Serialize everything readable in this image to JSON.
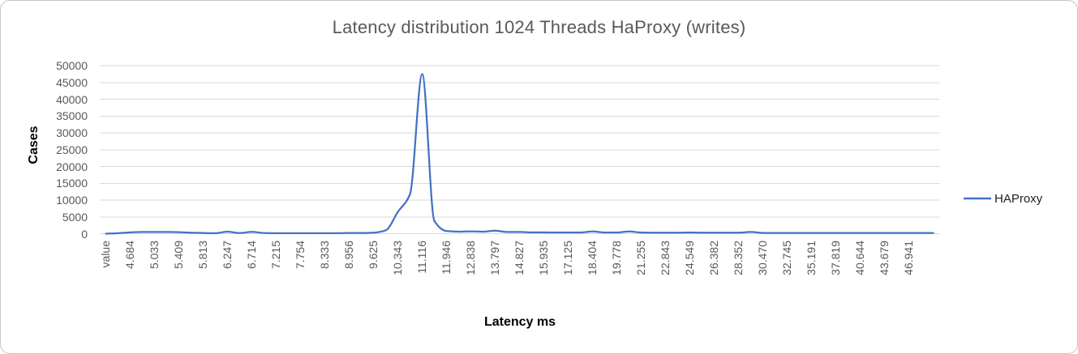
{
  "styles": {
    "accent": "#4472C4",
    "grid_color": "#D9D9D9",
    "muted_text": "#595959",
    "frame_border": "#C6C6C6"
  },
  "chart_data": {
    "type": "line",
    "title": "Latency distribution 1024 Threads HaProxy (writes)",
    "xlabel": "Latency ms",
    "ylabel": "Cases",
    "ylim": [
      0,
      50000
    ],
    "grid": true,
    "smooth_line": true,
    "y_ticks": [
      "0",
      "5000",
      "10000",
      "15000",
      "20000",
      "25000",
      "30000",
      "35000",
      "40000",
      "45000",
      "50000"
    ],
    "categories": [
      "value",
      "4.684",
      "5.033",
      "5.409",
      "5.813",
      "6.247",
      "6.714",
      "7.215",
      "7.754",
      "8.333",
      "8.956",
      "9.625",
      "10.343",
      "11.116",
      "11.946",
      "12.838",
      "13.797",
      "14.827",
      "15.935",
      "17.125",
      "18.404",
      "19.778",
      "21.255",
      "22.843",
      "24.549",
      "26.382",
      "28.352",
      "30.470",
      "32.745",
      "35.191",
      "37.819",
      "40.644",
      "43.679",
      "46.941"
    ],
    "category_label_every_n_points": 2,
    "legend": {
      "position": "right",
      "entries": [
        {
          "label": "HAProxy",
          "color": "#4472C4"
        }
      ]
    },
    "series": [
      {
        "name": "HAProxy",
        "color": "#4472C4",
        "values": [
          0,
          150,
          400,
          500,
          500,
          500,
          450,
          300,
          200,
          150,
          600,
          200,
          550,
          200,
          150,
          150,
          150,
          150,
          150,
          150,
          200,
          200,
          300,
          1000,
          6500,
          11800,
          47500,
          3800,
          800,
          600,
          700,
          600,
          900,
          500,
          500,
          400,
          400,
          350,
          350,
          350,
          650,
          350,
          350,
          650,
          350,
          300,
          300,
          300,
          350,
          300,
          300,
          300,
          300,
          500,
          250,
          200,
          200,
          200,
          200,
          200,
          200,
          200,
          200,
          200,
          200,
          200,
          200,
          200,
          200
        ]
      }
    ]
  }
}
